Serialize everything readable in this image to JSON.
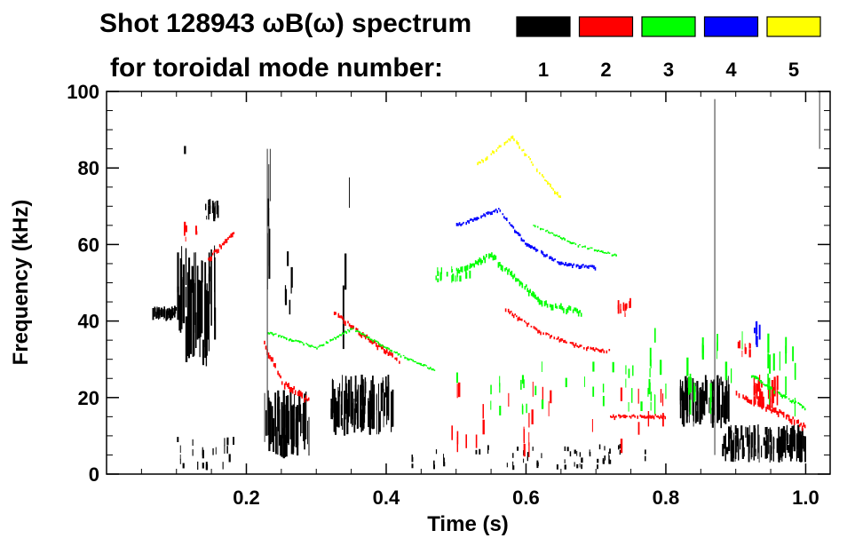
{
  "chart_data": {
    "type": "heatmap",
    "title_line1": "Shot 128943 ωB(ω) spectrum",
    "title_line2": "for toroidal mode number:",
    "xlabel": "Time (s)",
    "ylabel": "Frequency (kHz)",
    "xlim": [
      0.0,
      1.035
    ],
    "ylim": [
      0,
      100
    ],
    "x_ticks": [
      0.2,
      0.4,
      0.6,
      0.8,
      1.0
    ],
    "x_tick_labels": [
      "0.2",
      "0.4",
      "0.6",
      "0.8",
      "1.0"
    ],
    "y_ticks": [
      0,
      20,
      40,
      60,
      80,
      100
    ],
    "y_tick_labels": [
      "0",
      "20",
      "40",
      "60",
      "80",
      "100"
    ],
    "legend": [
      {
        "mode": 1,
        "label": "1",
        "color": "#000000"
      },
      {
        "mode": 2,
        "label": "2",
        "color": "#ff0000"
      },
      {
        "mode": 3,
        "label": "3",
        "color": "#00ff00"
      },
      {
        "mode": 4,
        "label": "4",
        "color": "#0000ff"
      },
      {
        "mode": 5,
        "label": "5",
        "color": "#ffff00"
      }
    ],
    "blobs": [
      {
        "mode": 1,
        "t": [
          0.065,
          0.1
        ],
        "f": [
          40,
          44
        ],
        "density": 0.9
      },
      {
        "mode": 1,
        "t": [
          0.1,
          0.155
        ],
        "f": [
          28,
          60
        ],
        "density": 0.8
      },
      {
        "mode": 1,
        "t": [
          0.14,
          0.16
        ],
        "f": [
          66,
          72
        ],
        "density": 0.7
      },
      {
        "mode": 1,
        "t": [
          0.1,
          0.12
        ],
        "f": [
          76,
          86
        ],
        "density": 0.2
      },
      {
        "mode": 1,
        "t": [
          0.225,
          0.29
        ],
        "f": [
          4,
          22
        ],
        "density": 0.85
      },
      {
        "mode": 1,
        "t": [
          0.225,
          0.235
        ],
        "f": [
          40,
          85
        ],
        "density": 0.3
      },
      {
        "mode": 1,
        "t": [
          0.255,
          0.265
        ],
        "f": [
          40,
          60
        ],
        "density": 0.2
      },
      {
        "mode": 1,
        "t": [
          0.32,
          0.41
        ],
        "f": [
          10,
          26
        ],
        "density": 0.85
      },
      {
        "mode": 1,
        "t": [
          0.335,
          0.35
        ],
        "f": [
          30,
          80
        ],
        "density": 0.3
      },
      {
        "mode": 1,
        "t": [
          0.1,
          0.2
        ],
        "f": [
          1,
          10
        ],
        "density": 0.15
      },
      {
        "mode": 1,
        "t": [
          0.43,
          0.8
        ],
        "f": [
          1,
          8
        ],
        "density": 0.07
      },
      {
        "mode": 1,
        "t": [
          0.82,
          0.89
        ],
        "f": [
          12,
          26
        ],
        "density": 0.8
      },
      {
        "mode": 1,
        "t": [
          0.88,
          1.0
        ],
        "f": [
          3,
          13
        ],
        "density": 0.85
      },
      {
        "mode": 2,
        "t": [
          0.11,
          0.13
        ],
        "f": [
          60,
          66
        ],
        "density": 0.4
      },
      {
        "mode": 2,
        "t": [
          0.925,
          0.96
        ],
        "f": [
          17,
          26
        ],
        "density": 0.6
      },
      {
        "mode": 2,
        "t": [
          0.73,
          0.75
        ],
        "f": [
          41,
          46
        ],
        "density": 0.7
      },
      {
        "mode": 2,
        "t": [
          0.9,
          0.92
        ],
        "f": [
          30,
          36
        ],
        "density": 0.4
      },
      {
        "mode": 2,
        "t": [
          0.47,
          0.8
        ],
        "f": [
          3,
          25
        ],
        "density": 0.05
      },
      {
        "mode": 3,
        "t": [
          0.47,
          0.52
        ],
        "f": [
          50,
          55
        ],
        "density": 0.4
      },
      {
        "mode": 3,
        "t": [
          0.75,
          1.0
        ],
        "f": [
          15,
          40
        ],
        "density": 0.08
      },
      {
        "mode": 3,
        "t": [
          0.5,
          0.8
        ],
        "f": [
          15,
          30
        ],
        "density": 0.05
      },
      {
        "mode": 4,
        "t": [
          0.925,
          0.935
        ],
        "f": [
          33,
          40
        ],
        "density": 0.6
      }
    ],
    "tracks": [
      {
        "mode": 2,
        "points": [
          [
            0.145,
            56
          ],
          [
            0.165,
            60
          ],
          [
            0.185,
            64
          ]
        ],
        "width": 4
      },
      {
        "mode": 2,
        "points": [
          [
            0.225,
            34
          ],
          [
            0.25,
            24
          ],
          [
            0.29,
            19
          ]
        ],
        "width": 5
      },
      {
        "mode": 2,
        "points": [
          [
            0.325,
            42
          ],
          [
            0.36,
            37
          ],
          [
            0.4,
            32
          ],
          [
            0.42,
            29
          ]
        ],
        "width": 4
      },
      {
        "mode": 2,
        "points": [
          [
            0.57,
            43
          ],
          [
            0.62,
            37
          ],
          [
            0.68,
            33
          ],
          [
            0.72,
            32
          ]
        ],
        "width": 3
      },
      {
        "mode": 2,
        "points": [
          [
            0.72,
            15
          ],
          [
            0.78,
            15
          ],
          [
            0.8,
            15
          ]
        ],
        "width": 3
      },
      {
        "mode": 2,
        "points": [
          [
            0.9,
            21
          ],
          [
            0.96,
            16
          ],
          [
            1.0,
            12
          ]
        ],
        "width": 5
      },
      {
        "mode": 3,
        "points": [
          [
            0.5,
            53
          ],
          [
            0.55,
            57
          ],
          [
            0.59,
            50
          ],
          [
            0.62,
            45
          ],
          [
            0.68,
            42
          ]
        ],
        "width": 5
      },
      {
        "mode": 3,
        "points": [
          [
            0.61,
            65
          ],
          [
            0.67,
            60
          ],
          [
            0.73,
            57
          ]
        ],
        "width": 2
      },
      {
        "mode": 3,
        "points": [
          [
            0.23,
            37
          ],
          [
            0.3,
            33
          ],
          [
            0.35,
            38
          ],
          [
            0.42,
            31
          ],
          [
            0.47,
            27
          ]
        ],
        "width": 2
      },
      {
        "mode": 3,
        "points": [
          [
            0.92,
            26
          ],
          [
            0.96,
            21
          ],
          [
            1.0,
            17
          ]
        ],
        "width": 3
      },
      {
        "mode": 4,
        "points": [
          [
            0.5,
            65
          ],
          [
            0.56,
            69
          ],
          [
            0.6,
            60
          ],
          [
            0.65,
            55
          ],
          [
            0.7,
            54
          ]
        ],
        "width": 3
      },
      {
        "mode": 5,
        "points": [
          [
            0.53,
            81
          ],
          [
            0.58,
            88
          ],
          [
            0.63,
            76
          ],
          [
            0.65,
            72
          ]
        ],
        "width": 3
      }
    ],
    "spikes": [
      {
        "mode": 1,
        "t": 0.87,
        "f": [
          5,
          98
        ]
      },
      {
        "mode": 1,
        "t": 0.23,
        "f": [
          10,
          85
        ]
      },
      {
        "mode": 1,
        "t": 1.02,
        "f": [
          85,
          100
        ]
      }
    ]
  }
}
